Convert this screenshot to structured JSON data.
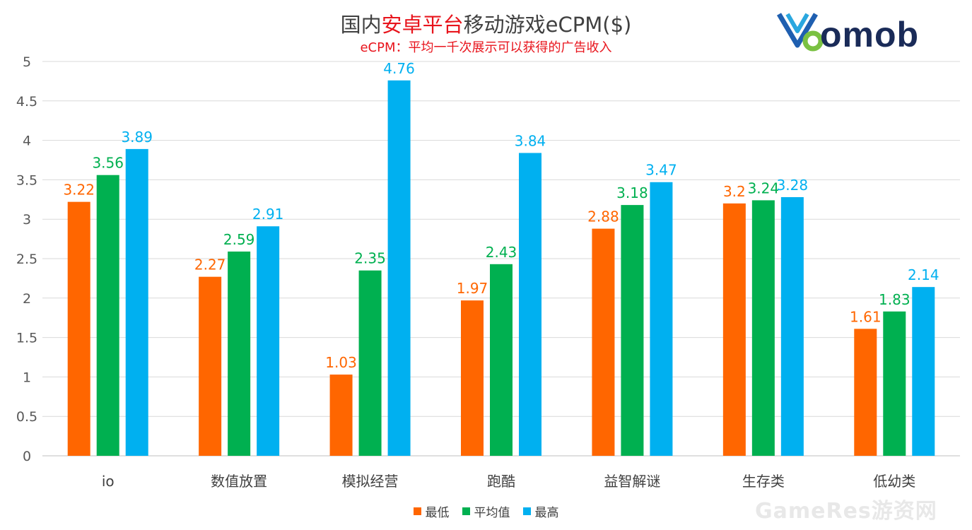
{
  "title": {
    "prefix": "国内",
    "highlight": "安卓平台",
    "suffix": "移动游戏eCPM($)",
    "subtitle": "eCPM：平均一千次展示可以获得的广告收入"
  },
  "logo": {
    "text": "omob",
    "icon": "yomob-logo-icon"
  },
  "watermark": "GameRes游资网",
  "colors": {
    "min": "#ff6600",
    "avg": "#00b050",
    "max": "#00b0f0",
    "grid": "#d9d9d9",
    "axis_text": "#595959",
    "title_highlight": "#e8141c"
  },
  "chart_data": {
    "type": "bar",
    "title": "国内安卓平台移动游戏eCPM($)",
    "subtitle": "eCPM：平均一千次展示可以获得的广告收入",
    "categories": [
      "io",
      "数值放置",
      "模拟经营",
      "跑酷",
      "益智解谜",
      "生存类",
      "低幼类"
    ],
    "series": [
      {
        "name": "最低",
        "values": [
          3.22,
          2.27,
          1.03,
          1.97,
          2.88,
          3.2,
          1.61
        ]
      },
      {
        "name": "平均值",
        "values": [
          3.56,
          2.59,
          2.35,
          2.43,
          3.18,
          3.24,
          1.83
        ]
      },
      {
        "name": "最高",
        "values": [
          3.89,
          2.91,
          4.76,
          3.84,
          3.47,
          3.28,
          2.14
        ]
      }
    ],
    "ylim": [
      0,
      5
    ],
    "yticks": [
      "0",
      "0.5",
      "1",
      "1.5",
      "2",
      "2.5",
      "3",
      "3.5",
      "4",
      "4.5",
      "5"
    ],
    "grid": true,
    "legend": "bottom-center",
    "data_labels": true
  }
}
